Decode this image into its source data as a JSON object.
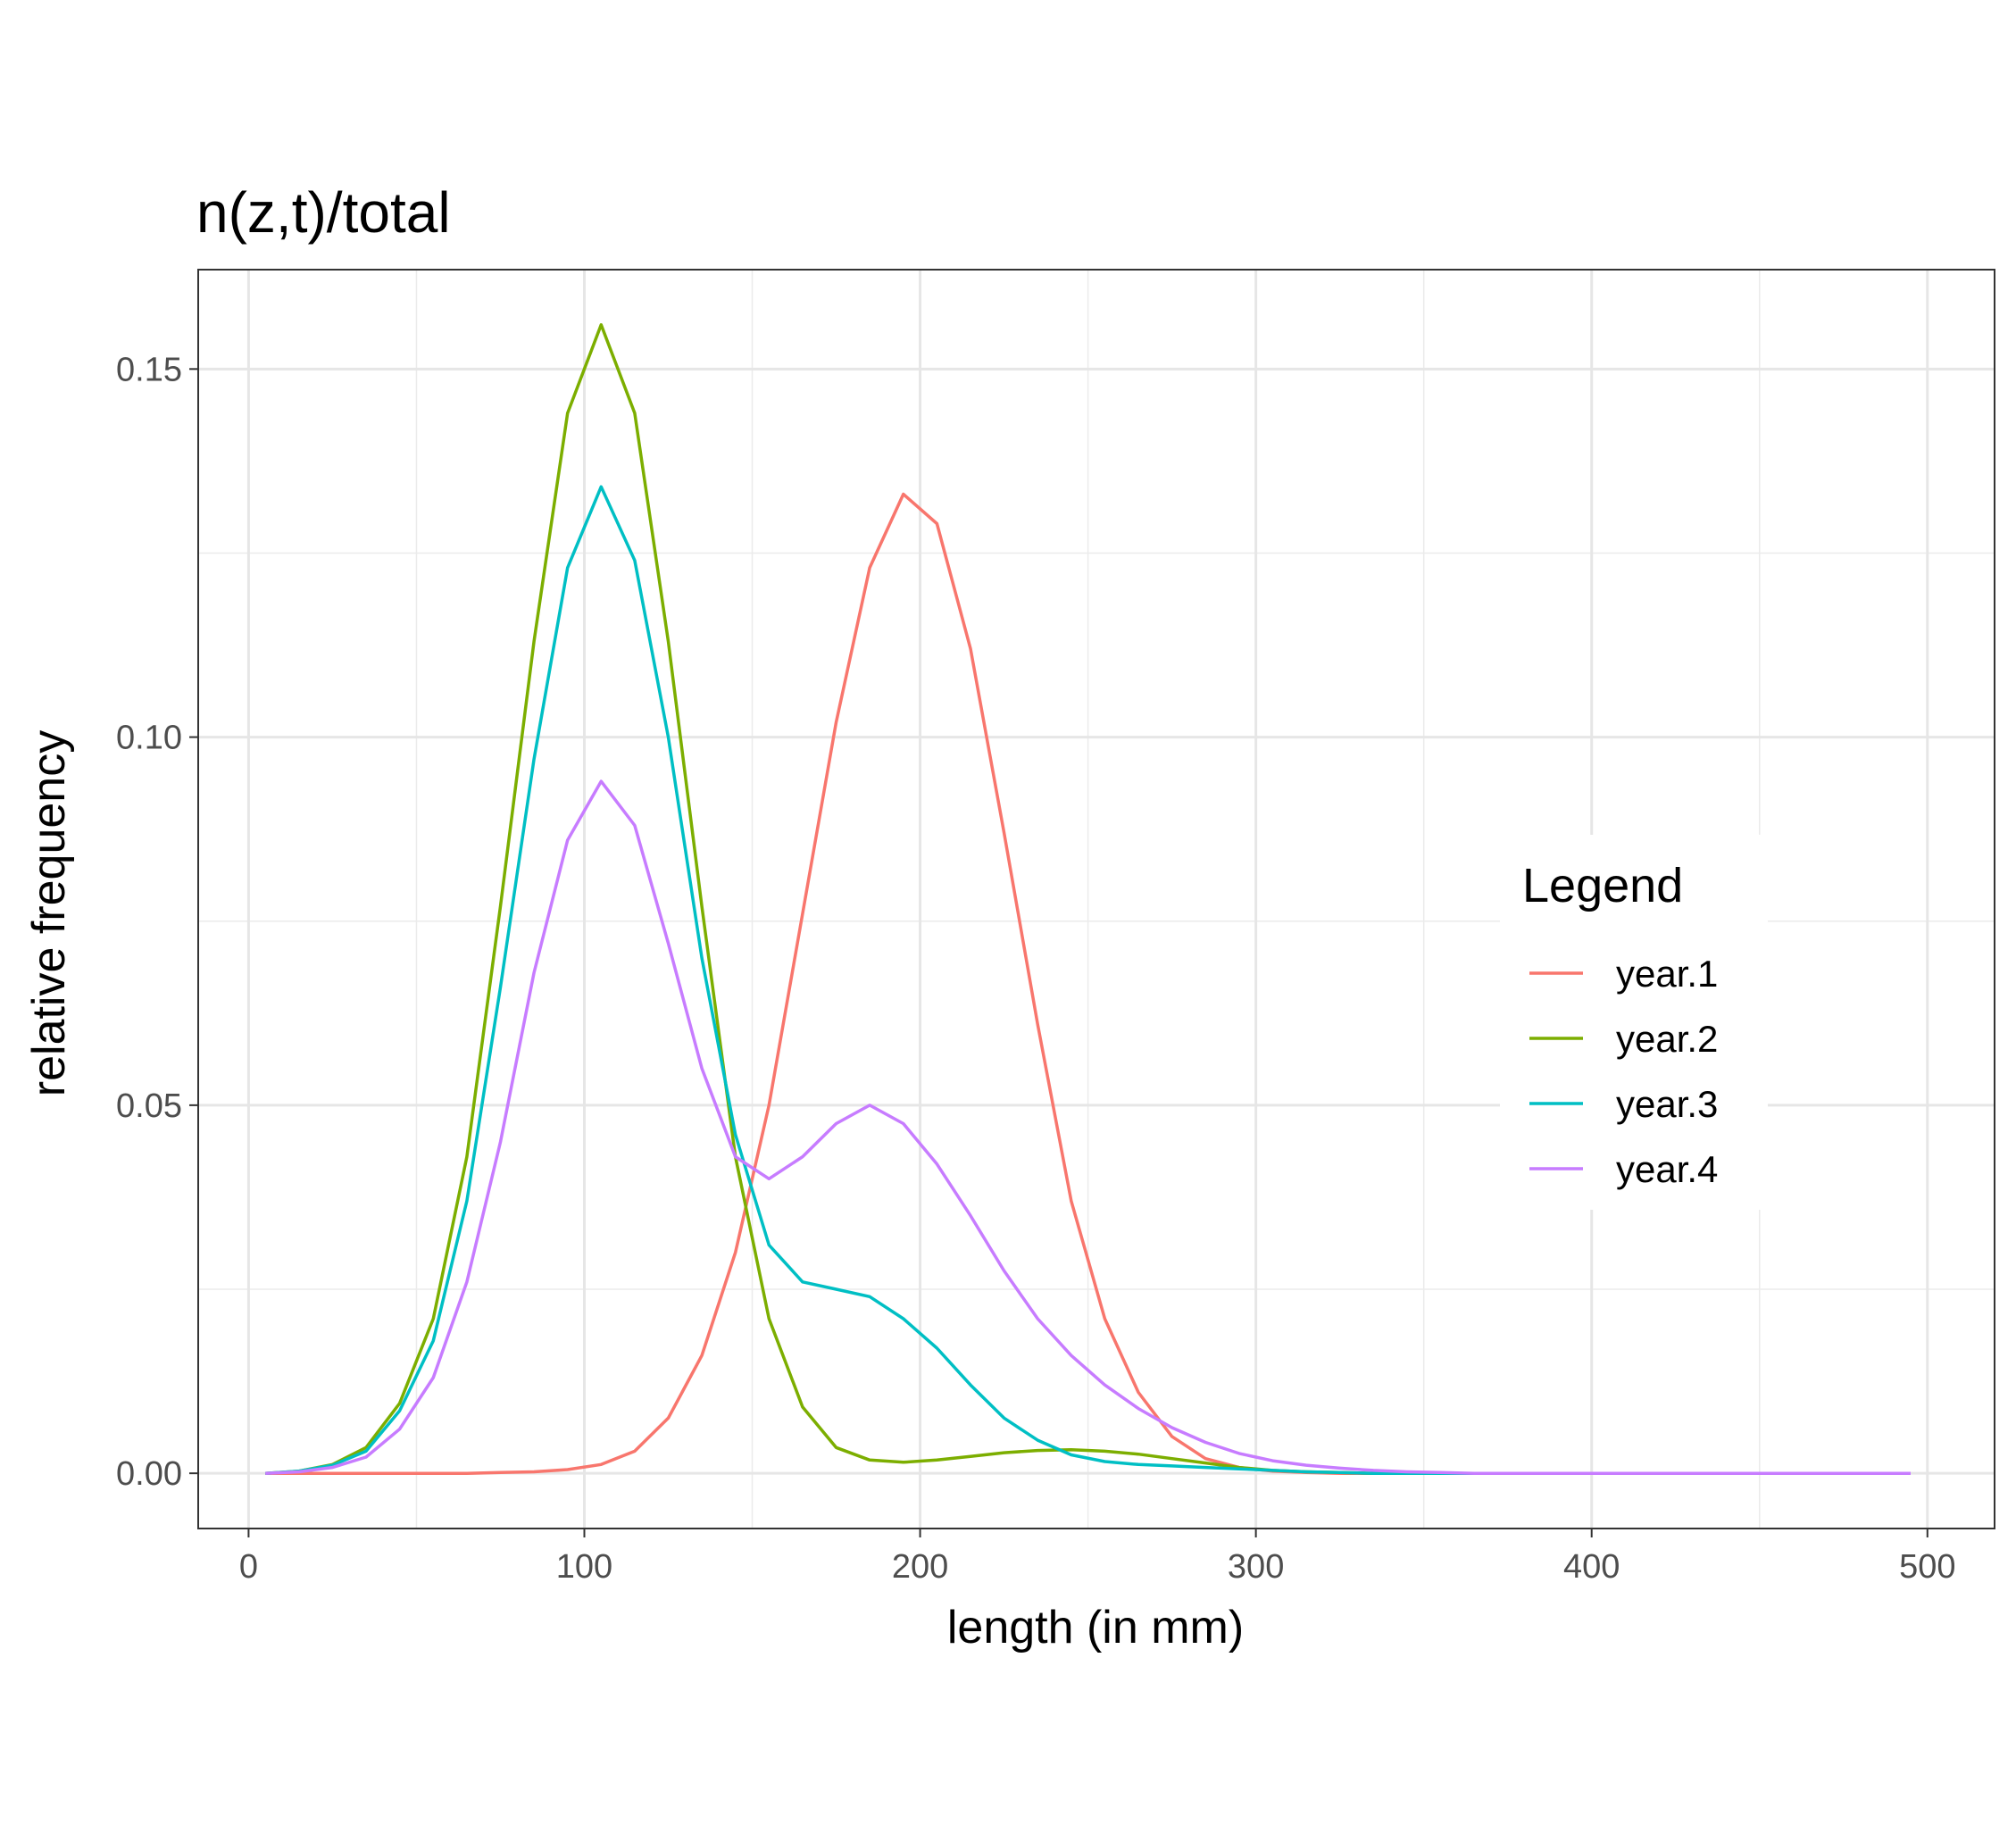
{
  "chart_data": {
    "type": "line",
    "title": "n(z,t)/total",
    "xlabel": "length (in mm)",
    "ylabel": "relative frequency",
    "xlim": [
      -15,
      520
    ],
    "ylim": [
      -0.0075,
      0.1635
    ],
    "x_ticks": [
      0,
      100,
      200,
      300,
      400,
      500
    ],
    "x_tick_labels": [
      "0",
      "100",
      "200",
      "300",
      "400",
      "500"
    ],
    "x_minor_ticks": [
      50,
      150,
      250,
      350,
      450
    ],
    "y_ticks": [
      0,
      0.05,
      0.1,
      0.15
    ],
    "y_tick_labels": [
      "0.00",
      "0.05",
      "0.10",
      "0.15"
    ],
    "y_minor_ticks": [
      0.025,
      0.075,
      0.125
    ],
    "grid": true,
    "legend": {
      "title": "Legend",
      "position": "right"
    },
    "x": [
      5,
      15,
      25,
      35,
      45,
      55,
      65,
      75,
      85,
      95,
      105,
      115,
      125,
      135,
      145,
      155,
      165,
      175,
      185,
      195,
      205,
      215,
      225,
      235,
      245,
      255,
      265,
      275,
      285,
      295,
      305,
      315,
      325,
      335,
      345,
      355,
      365,
      375,
      385,
      395,
      405,
      415,
      425,
      435,
      445,
      455,
      465,
      475,
      485,
      495
    ],
    "series": [
      {
        "name": "year.1",
        "color": "#F8766D",
        "values": [
          0,
          0,
          0,
          0,
          0,
          0,
          0,
          0.0001,
          0.0002,
          0.0005,
          0.0012,
          0.003,
          0.0075,
          0.016,
          0.03,
          0.05,
          0.076,
          0.102,
          0.123,
          0.133,
          0.129,
          0.112,
          0.087,
          0.061,
          0.037,
          0.021,
          0.011,
          0.005,
          0.002,
          0.0008,
          0.0003,
          0.0001,
          0,
          0,
          0,
          0,
          0,
          0,
          0,
          0,
          0,
          0,
          0,
          0,
          0,
          0,
          0,
          0,
          0,
          0
        ]
      },
      {
        "name": "year.2",
        "color": "#7CAE00",
        "values": [
          0,
          0.0003,
          0.0012,
          0.0035,
          0.0095,
          0.021,
          0.043,
          0.077,
          0.113,
          0.144,
          0.156,
          0.144,
          0.113,
          0.077,
          0.043,
          0.021,
          0.009,
          0.0035,
          0.0018,
          0.0015,
          0.0018,
          0.0023,
          0.0028,
          0.0031,
          0.0032,
          0.003,
          0.0026,
          0.002,
          0.0014,
          0.0008,
          0.0004,
          0.0002,
          0.0001,
          0,
          0,
          0,
          0,
          0,
          0,
          0,
          0,
          0,
          0,
          0,
          0,
          0,
          0,
          0,
          0,
          0
        ]
      },
      {
        "name": "year.3",
        "color": "#00BFC4",
        "values": [
          0,
          0.0003,
          0.0011,
          0.003,
          0.0085,
          0.018,
          0.037,
          0.066,
          0.097,
          0.123,
          0.134,
          0.124,
          0.1,
          0.07,
          0.046,
          0.031,
          0.026,
          0.025,
          0.024,
          0.021,
          0.017,
          0.012,
          0.0075,
          0.0045,
          0.0025,
          0.0016,
          0.0012,
          0.001,
          0.0008,
          0.0006,
          0.0004,
          0.0002,
          0.0001,
          0,
          0,
          0,
          0,
          0,
          0,
          0,
          0,
          0,
          0,
          0,
          0,
          0,
          0,
          0,
          0,
          0
        ]
      },
      {
        "name": "year.4",
        "color": "#C77CFF",
        "values": [
          0,
          0.0002,
          0.0008,
          0.0022,
          0.006,
          0.013,
          0.026,
          0.045,
          0.068,
          0.086,
          0.094,
          0.088,
          0.072,
          0.055,
          0.043,
          0.04,
          0.043,
          0.0475,
          0.05,
          0.0475,
          0.042,
          0.035,
          0.0275,
          0.021,
          0.016,
          0.012,
          0.0088,
          0.0062,
          0.0042,
          0.0027,
          0.0017,
          0.0011,
          0.0007,
          0.0004,
          0.0002,
          0.0001,
          0,
          0,
          0,
          0,
          0,
          0,
          0,
          0,
          0,
          0,
          0,
          0,
          0,
          0
        ]
      }
    ]
  }
}
